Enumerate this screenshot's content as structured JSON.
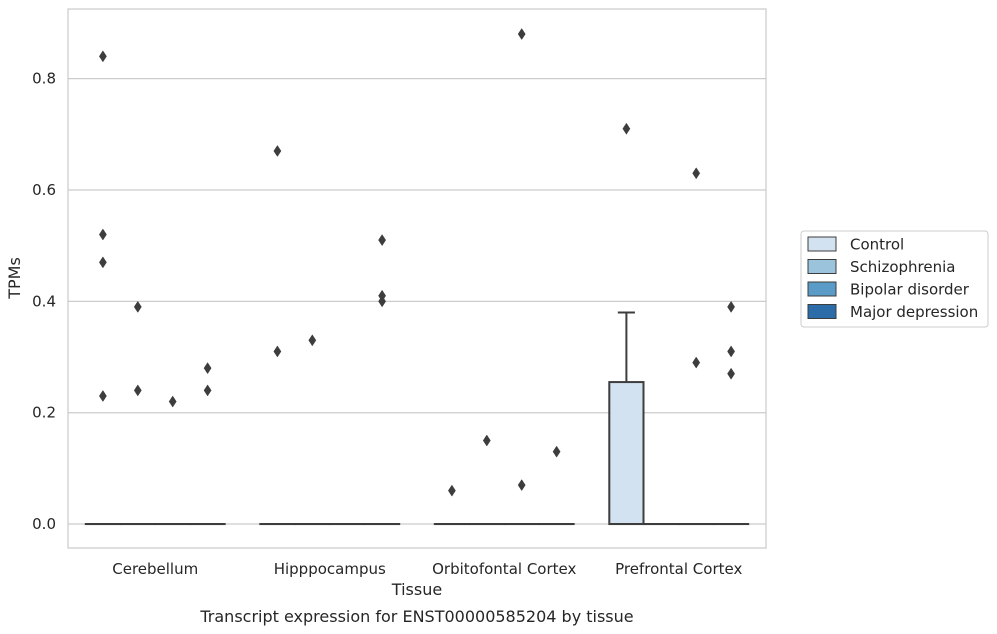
{
  "chart_data": {
    "type": "box",
    "title": "",
    "caption": "Transcript expression for ENST00000585204 by tissue",
    "xlabel": "Tissue",
    "ylabel": "TPMs",
    "categories": [
      "Cerebellum",
      "Hipppocampus",
      "Orbitofontal Cortex",
      "Prefrontal Cortex"
    ],
    "ylim": [
      -0.043,
      0.925
    ],
    "yticks": [
      0.0,
      0.2,
      0.4,
      0.6,
      0.8
    ],
    "ytick_labels": [
      "0.0",
      "0.2",
      "0.4",
      "0.6",
      "0.8"
    ],
    "grid": true,
    "legend_position": "right",
    "series": [
      {
        "name": "Control",
        "color": "#d2e2f0",
        "boxes": [
          {
            "category": "Cerebellum",
            "q1": 0,
            "median": 0,
            "q3": 0,
            "whisker_low": 0,
            "whisker_high": 0,
            "outliers": [
              0.84,
              0.52,
              0.47,
              0.23
            ]
          },
          {
            "category": "Hipppocampus",
            "q1": 0,
            "median": 0,
            "q3": 0,
            "whisker_low": 0,
            "whisker_high": 0,
            "outliers": [
              0.67,
              0.31
            ]
          },
          {
            "category": "Orbitofontal Cortex",
            "q1": 0,
            "median": 0,
            "q3": 0,
            "whisker_low": 0,
            "whisker_high": 0,
            "outliers": [
              0.06
            ]
          },
          {
            "category": "Prefrontal Cortex",
            "q1": 0,
            "median": 0,
            "q3": 0.255,
            "whisker_low": 0,
            "whisker_high": 0.38,
            "outliers": [
              0.71
            ]
          }
        ]
      },
      {
        "name": "Schizophrenia",
        "color": "#9cc3dc",
        "boxes": [
          {
            "category": "Cerebellum",
            "q1": 0,
            "median": 0,
            "q3": 0,
            "whisker_low": 0,
            "whisker_high": 0,
            "outliers": [
              0.39,
              0.24
            ]
          },
          {
            "category": "Hipppocampus",
            "q1": 0,
            "median": 0,
            "q3": 0,
            "whisker_low": 0,
            "whisker_high": 0,
            "outliers": [
              0.33
            ]
          },
          {
            "category": "Orbitofontal Cortex",
            "q1": 0,
            "median": 0,
            "q3": 0,
            "whisker_low": 0,
            "whisker_high": 0,
            "outliers": [
              0.15
            ]
          },
          {
            "category": "Prefrontal Cortex",
            "q1": 0,
            "median": 0,
            "q3": 0,
            "whisker_low": 0,
            "whisker_high": 0,
            "outliers": []
          }
        ]
      },
      {
        "name": "Bipolar disorder",
        "color": "#5b9bc8",
        "boxes": [
          {
            "category": "Cerebellum",
            "q1": 0,
            "median": 0,
            "q3": 0,
            "whisker_low": 0,
            "whisker_high": 0,
            "outliers": [
              0.22
            ]
          },
          {
            "category": "Hipppocampus",
            "q1": 0,
            "median": 0,
            "q3": 0,
            "whisker_low": 0,
            "whisker_high": 0,
            "outliers": []
          },
          {
            "category": "Orbitofontal Cortex",
            "q1": 0,
            "median": 0,
            "q3": 0,
            "whisker_low": 0,
            "whisker_high": 0,
            "outliers": [
              0.88,
              0.07
            ]
          },
          {
            "category": "Prefrontal Cortex",
            "q1": 0,
            "median": 0,
            "q3": 0,
            "whisker_low": 0,
            "whisker_high": 0,
            "outliers": [
              0.63,
              0.29
            ]
          }
        ]
      },
      {
        "name": "Major depression",
        "color": "#2b6ca9",
        "boxes": [
          {
            "category": "Cerebellum",
            "q1": 0,
            "median": 0,
            "q3": 0,
            "whisker_low": 0,
            "whisker_high": 0,
            "outliers": [
              0.28,
              0.24
            ]
          },
          {
            "category": "Hipppocampus",
            "q1": 0,
            "median": 0,
            "q3": 0,
            "whisker_low": 0,
            "whisker_high": 0,
            "outliers": [
              0.51,
              0.41,
              0.4
            ]
          },
          {
            "category": "Orbitofontal Cortex",
            "q1": 0,
            "median": 0,
            "q3": 0,
            "whisker_low": 0,
            "whisker_high": 0,
            "outliers": [
              0.13
            ]
          },
          {
            "category": "Prefrontal Cortex",
            "q1": 0,
            "median": 0,
            "q3": 0,
            "whisker_low": 0,
            "whisker_high": 0,
            "outliers": [
              0.39,
              0.31,
              0.27
            ]
          }
        ]
      }
    ]
  }
}
